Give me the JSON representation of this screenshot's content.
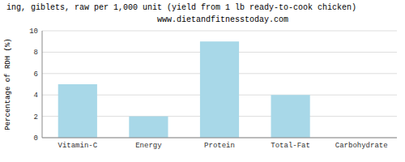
{
  "chart_data": {
    "type": "bar",
    "title": "ing, giblets, raw per 1,000 unit (yield from 1 lb ready-to-cook chicken)",
    "subtitle": "www.dietandfitnesstoday.com",
    "y_label": "Percentage of RDH (%)",
    "categories": [
      "Vitamin-C",
      "Energy",
      "Protein",
      "Total-Fat",
      "Carbohydrate"
    ],
    "values": [
      5.0,
      2.0,
      9.0,
      4.0,
      0.0
    ],
    "color": "#a8d8e8",
    "ylim": [
      0,
      10
    ],
    "yticks": [
      0,
      2,
      4,
      6,
      8,
      10
    ],
    "grid": true
  }
}
